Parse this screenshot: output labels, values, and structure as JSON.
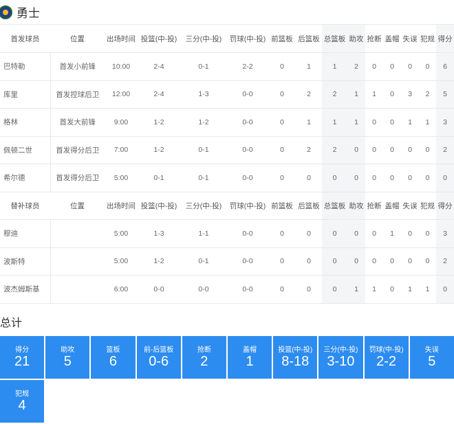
{
  "team": {
    "name": "勇士",
    "logo": "warriors-logo"
  },
  "columns": [
    "位置",
    "出场时间",
    "投篮(中-投)",
    "三分(中-投)",
    "罚球(中-投)",
    "前篮板",
    "后篮板",
    "总篮板",
    "助攻",
    "抢断",
    "盖帽",
    "失误",
    "犯规",
    "得分"
  ],
  "starters": {
    "header": "首发球员",
    "rows": [
      [
        "巴特勒",
        "首发小前锋",
        "10:00",
        "2-4",
        "0-1",
        "2-2",
        "0",
        "1",
        "1",
        "2",
        "0",
        "0",
        "0",
        "0",
        "6"
      ],
      [
        "库里",
        "首发控球后卫",
        "12:00",
        "2-4",
        "1-3",
        "0-0",
        "0",
        "2",
        "2",
        "1",
        "1",
        "0",
        "3",
        "2",
        "5"
      ],
      [
        "格林",
        "首发大前锋",
        "9:00",
        "1-2",
        "1-2",
        "0-0",
        "0",
        "1",
        "1",
        "1",
        "0",
        "0",
        "1",
        "1",
        "3"
      ],
      [
        "佩顿二世",
        "首发得分后卫",
        "7:00",
        "1-2",
        "0-1",
        "0-0",
        "0",
        "2",
        "2",
        "0",
        "0",
        "0",
        "0",
        "0",
        "2"
      ],
      [
        "希尔德",
        "首发得分后卫",
        "5:00",
        "0-1",
        "0-1",
        "0-0",
        "0",
        "0",
        "0",
        "0",
        "0",
        "0",
        "0",
        "0",
        "0"
      ]
    ]
  },
  "bench": {
    "header": "替补球员",
    "rows": [
      [
        "穆迪",
        "",
        "5:00",
        "1-3",
        "1-1",
        "0-0",
        "0",
        "0",
        "0",
        "0",
        "0",
        "1",
        "0",
        "0",
        "3"
      ],
      [
        "波斯特",
        "",
        "5:00",
        "1-2",
        "0-1",
        "0-0",
        "0",
        "0",
        "0",
        "0",
        "0",
        "0",
        "0",
        "0",
        "2"
      ],
      [
        "波杰姆斯基",
        "",
        "6:00",
        "0-0",
        "0-0",
        "0-0",
        "0",
        "0",
        "0",
        "1",
        "1",
        "0",
        "1",
        "1",
        "0"
      ]
    ]
  },
  "totals": {
    "title": "总计",
    "accent": "#2d8cf0",
    "items": [
      {
        "label": "得分",
        "value": "21"
      },
      {
        "label": "助攻",
        "value": "5"
      },
      {
        "label": "篮板",
        "value": "6"
      },
      {
        "label": "前-后篮板",
        "value": "0-6"
      },
      {
        "label": "抢断",
        "value": "2"
      },
      {
        "label": "盖帽",
        "value": "1"
      },
      {
        "label": "投篮(中-投)",
        "value": "8-18"
      },
      {
        "label": "三分(中-投)",
        "value": "3-10"
      },
      {
        "label": "罚球(中-投)",
        "value": "2-2"
      },
      {
        "label": "失误",
        "value": "5"
      },
      {
        "label": "犯规",
        "value": "4"
      }
    ]
  }
}
